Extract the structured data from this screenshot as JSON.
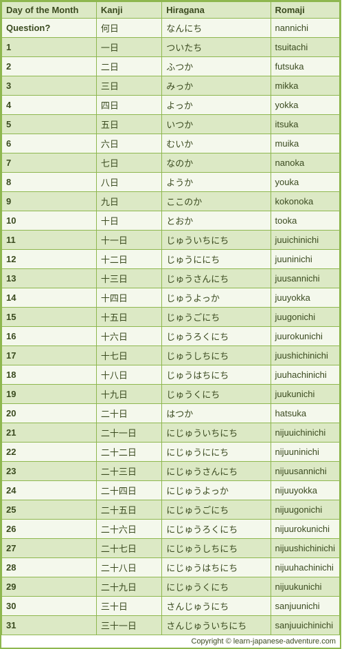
{
  "colors": {
    "border": "#8eb74f",
    "header_bg": "#dce9c5",
    "row_even_bg": "#dce9c5",
    "row_odd_bg": "#f4f8ec",
    "text": "#3a4a1f"
  },
  "headers": {
    "day": "Day of the Month",
    "kanji": "Kanji",
    "hiragana": "Hiragana",
    "romaji": "Romaji"
  },
  "rows": [
    {
      "day": "Question?",
      "kanji": "何日",
      "hira": "なんにち",
      "roma": "nannichi"
    },
    {
      "day": "1",
      "kanji": "一日",
      "hira": "ついたち",
      "roma": "tsuitachi"
    },
    {
      "day": "2",
      "kanji": "二日",
      "hira": "ふつか",
      "roma": "futsuka"
    },
    {
      "day": "3",
      "kanji": "三日",
      "hira": "みっか",
      "roma": "mikka"
    },
    {
      "day": "4",
      "kanji": "四日",
      "hira": "よっか",
      "roma": "yokka"
    },
    {
      "day": "5",
      "kanji": "五日",
      "hira": "いつか",
      "roma": "itsuka"
    },
    {
      "day": "6",
      "kanji": "六日",
      "hira": "むいか",
      "roma": "muika"
    },
    {
      "day": "7",
      "kanji": "七日",
      "hira": "なのか",
      "roma": "nanoka"
    },
    {
      "day": "8",
      "kanji": "八日",
      "hira": "ようか",
      "roma": "youka"
    },
    {
      "day": "9",
      "kanji": "九日",
      "hira": "ここのか",
      "roma": "kokonoka"
    },
    {
      "day": "10",
      "kanji": "十日",
      "hira": "とおか",
      "roma": "tooka"
    },
    {
      "day": "11",
      "kanji": "十一日",
      "hira": "じゅういちにち",
      "roma": "juuichinichi"
    },
    {
      "day": "12",
      "kanji": "十二日",
      "hira": "じゅうににち",
      "roma": "juuninichi"
    },
    {
      "day": "13",
      "kanji": "十三日",
      "hira": "じゅうさんにち",
      "roma": "juusannichi"
    },
    {
      "day": "14",
      "kanji": "十四日",
      "hira": "じゅうよっか",
      "roma": "juuyokka"
    },
    {
      "day": "15",
      "kanji": "十五日",
      "hira": "じゅうごにち",
      "roma": "juugonichi"
    },
    {
      "day": "16",
      "kanji": "十六日",
      "hira": "じゅうろくにち",
      "roma": "juurokunichi"
    },
    {
      "day": "17",
      "kanji": "十七日",
      "hira": "じゅうしちにち",
      "roma": "juushichinichi"
    },
    {
      "day": "18",
      "kanji": "十八日",
      "hira": "じゅうはちにち",
      "roma": "juuhachinichi"
    },
    {
      "day": "19",
      "kanji": "十九日",
      "hira": "じゅうくにち",
      "roma": "juukunichi"
    },
    {
      "day": "20",
      "kanji": "二十日",
      "hira": "はつか",
      "roma": "hatsuka"
    },
    {
      "day": "21",
      "kanji": "二十一日",
      "hira": "にじゅういちにち",
      "roma": "nijuuichinichi"
    },
    {
      "day": "22",
      "kanji": "二十二日",
      "hira": "にじゅうににち",
      "roma": "nijuuninichi"
    },
    {
      "day": "23",
      "kanji": "二十三日",
      "hira": "にじゅうさんにち",
      "roma": "nijuusannichi"
    },
    {
      "day": "24",
      "kanji": "二十四日",
      "hira": "にじゅうよっか",
      "roma": "nijuuyokka"
    },
    {
      "day": "25",
      "kanji": "二十五日",
      "hira": "にじゅうごにち",
      "roma": "nijuugonichi"
    },
    {
      "day": "26",
      "kanji": "二十六日",
      "hira": "にじゅうろくにち",
      "roma": "nijuurokunichi"
    },
    {
      "day": "27",
      "kanji": "二十七日",
      "hira": "にじゅうしちにち",
      "roma": "nijuushichinichi"
    },
    {
      "day": "28",
      "kanji": "二十八日",
      "hira": "にじゅうはちにち",
      "roma": "nijuuhachinichi"
    },
    {
      "day": "29",
      "kanji": "二十九日",
      "hira": "にじゅうくにち",
      "roma": "nijuukunichi"
    },
    {
      "day": "30",
      "kanji": "三十日",
      "hira": "さんじゅうにち",
      "roma": "sanjuunichi"
    },
    {
      "day": "31",
      "kanji": "三十一日",
      "hira": "さんじゅういちにち",
      "roma": "sanjuuichinichi"
    }
  ],
  "caption": "Copyright © learn-japanese-adventure.com"
}
